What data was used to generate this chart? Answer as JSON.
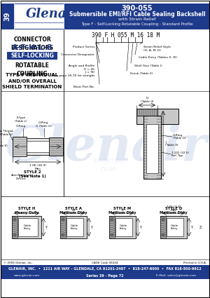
{
  "bg_color": "#ffffff",
  "blue": "#1e3a8a",
  "white": "#ffffff",
  "gray_light": "#d8d8d8",
  "gray_med": "#b0b0b0",
  "gray_dark": "#888888",
  "part_number": "390-055",
  "title_line1": "Submersible EMI/RFI Cable Sealing Backshell",
  "title_line2": "with Strain Relief",
  "title_line3": "Type F - Self-Locking Rotatable Coupling - Standard Profile",
  "series_label": "39",
  "part_code": "390 F H 055 M 16 18 M",
  "footer_main": "GLENAIR, INC.  •  1211 AIR WAY - GLENDALE, CA 91201-2497  •  818-247-6000  •  FAX 818-500-9912",
  "footer_web": "www.glenair.com",
  "footer_series": "Series 39 - Page 72",
  "footer_email": "E-Mail: sales@glenair.com",
  "copyright": "© 2005 Glenair, Inc.",
  "cage": "CAGE Code 06324",
  "printed": "Printed in U.S.A.",
  "watermark_color": "#b0c0e0",
  "watermark_alpha": 0.35
}
